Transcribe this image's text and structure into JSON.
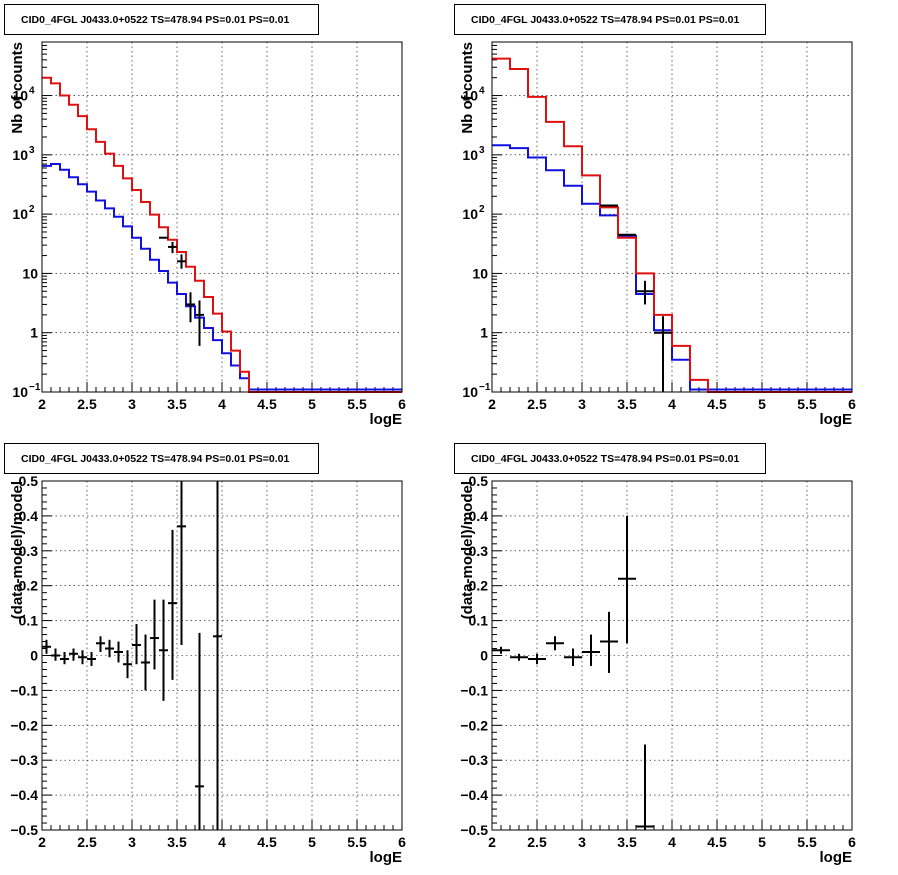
{
  "chart_data": [
    {
      "type": "histogram",
      "title": "CID0_4FGL J0433.0+0522 TS=478.94 PS=0.01 PS=0.01",
      "xlabel": "logE",
      "ylabel": "Nb of counts",
      "xlim": [
        2,
        6
      ],
      "ylim": [
        0.1,
        80000
      ],
      "yscale": "log",
      "grid": true,
      "xticks": [
        "2",
        "2.5",
        "3",
        "3.5",
        "4",
        "4.5",
        "5",
        "5.5",
        "6"
      ],
      "yticks": [
        {
          "v": 0.1,
          "base": "10",
          "exp": "−1"
        },
        {
          "v": 1,
          "label": "1"
        },
        {
          "v": 10,
          "label": "10"
        },
        {
          "v": 100,
          "base": "10",
          "exp": "2"
        },
        {
          "v": 1000,
          "base": "10",
          "exp": "3"
        },
        {
          "v": 10000,
          "base": "10",
          "exp": "4"
        }
      ],
      "bin_edges": [
        2.0,
        2.1,
        2.2,
        2.3,
        2.4,
        2.5,
        2.6,
        2.7,
        2.8,
        2.9,
        3.0,
        3.1,
        3.2,
        3.3,
        3.4,
        3.5,
        3.6,
        3.7,
        3.8,
        3.9,
        4.0,
        4.1,
        4.2,
        4.3,
        4.4,
        4.5,
        4.6,
        4.7,
        4.8,
        4.9,
        5.0,
        5.1,
        5.2,
        5.3,
        5.4,
        5.5,
        5.6,
        5.7,
        5.8,
        5.9,
        6.0
      ],
      "series": [
        {
          "color": "#1010e0",
          "values": [
            650,
            700,
            560,
            420,
            320,
            240,
            170,
            125,
            90,
            62,
            40,
            26,
            17,
            11,
            7,
            4.5,
            2.8,
            1.8,
            1.2,
            0.75,
            0.45,
            0.28,
            0.17,
            0.11,
            0.11,
            0.11,
            0.11,
            0.11,
            0.11,
            0.11,
            0.11,
            0.11,
            0.11,
            0.11,
            0.11,
            0.11,
            0.11,
            0.11,
            0.11,
            0.11
          ]
        },
        {
          "color": "#e01010",
          "values": [
            20000,
            16000,
            10000,
            7000,
            4500,
            2700,
            1650,
            1050,
            650,
            400,
            255,
            160,
            98,
            60,
            37,
            23,
            13,
            7.5,
            4,
            2.1,
            1.05,
            0.5,
            0.22,
            0.1,
            0.1,
            0.1,
            0.1,
            0.1,
            0.1,
            0.1,
            0.1,
            0.1,
            0.1,
            0.1,
            0.1,
            0.1,
            0.1,
            0.1,
            0.1,
            0.1
          ]
        },
        {
          "color": "#000000",
          "points": [
            {
              "x": 3.35,
              "y": 40
            },
            {
              "x": 3.45,
              "y": 28,
              "ylo": 22,
              "yhi": 34
            },
            {
              "x": 3.55,
              "y": 16,
              "ylo": 12,
              "yhi": 21
            },
            {
              "x": 3.65,
              "y": 3,
              "ylo": 1.5,
              "yhi": 4.8
            },
            {
              "x": 3.75,
              "y": 2,
              "ylo": 0.6,
              "yhi": 3.5
            }
          ]
        }
      ]
    },
    {
      "type": "histogram",
      "title": "CID0_4FGL J0433.0+0522 TS=478.94 PS=0.01 PS=0.01",
      "xlabel": "logE",
      "ylabel": "Nb of counts",
      "xlim": [
        2,
        6
      ],
      "ylim": [
        0.1,
        80000
      ],
      "yscale": "log",
      "grid": true,
      "xticks": [
        "2",
        "2.5",
        "3",
        "3.5",
        "4",
        "4.5",
        "5",
        "5.5",
        "6"
      ],
      "yticks": [
        {
          "v": 0.1,
          "base": "10",
          "exp": "−1"
        },
        {
          "v": 1,
          "label": "1"
        },
        {
          "v": 10,
          "label": "10"
        },
        {
          "v": 100,
          "base": "10",
          "exp": "2"
        },
        {
          "v": 1000,
          "base": "10",
          "exp": "3"
        },
        {
          "v": 10000,
          "base": "10",
          "exp": "4"
        }
      ],
      "bin_edges": [
        2.0,
        2.2,
        2.4,
        2.6,
        2.8,
        3.0,
        3.2,
        3.4,
        3.6,
        3.8,
        4.0,
        4.2,
        4.4,
        4.6,
        4.8,
        5.0,
        5.2,
        5.4,
        5.6,
        5.8,
        6.0
      ],
      "series": [
        {
          "color": "#1010e0",
          "values": [
            1450,
            1300,
            900,
            550,
            300,
            150,
            95,
            43,
            4.5,
            1.1,
            0.35,
            0.11,
            0.11,
            0.11,
            0.11,
            0.11,
            0.11,
            0.11,
            0.11,
            0.11
          ]
        },
        {
          "color": "#e01010",
          "values": [
            42000,
            28000,
            9500,
            3600,
            1400,
            450,
            130,
            40,
            10,
            2,
            0.6,
            0.16,
            0.1,
            0.1,
            0.1,
            0.1,
            0.1,
            0.1,
            0.1,
            0.1
          ]
        },
        {
          "color": "#000000",
          "points": [
            {
              "x": 3.3,
              "y": 140
            },
            {
              "x": 3.5,
              "y": 45
            },
            {
              "x": 3.7,
              "y": 5,
              "ylo": 3,
              "yhi": 7.5
            },
            {
              "x": 3.9,
              "y": 1,
              "ylo": 0.1,
              "yhi": 1.9
            }
          ]
        }
      ]
    },
    {
      "type": "scatter",
      "title": "CID0_4FGL J0433.0+0522 TS=478.94 PS=0.01 PS=0.01",
      "xlabel": "logE",
      "ylabel": "(data-model)/model",
      "xlim": [
        2,
        6
      ],
      "ylim": [
        -0.5,
        0.5
      ],
      "grid": true,
      "xticks": [
        "2",
        "2.5",
        "3",
        "3.5",
        "4",
        "4.5",
        "5",
        "5.5",
        "6"
      ],
      "yticks": [
        "−0.5",
        "−0.4",
        "−0.3",
        "−0.2",
        "−0.1",
        "0",
        "0.1",
        "0.2",
        "0.3",
        "0.4",
        "0.5"
      ],
      "series": [
        {
          "color": "#000000",
          "xerr": 0.05,
          "points": [
            {
              "x": 2.05,
              "y": 0.025,
              "ylo": 0.005,
              "yhi": 0.045
            },
            {
              "x": 2.15,
              "y": 0.0,
              "ylo": -0.015,
              "yhi": 0.02
            },
            {
              "x": 2.25,
              "y": -0.01,
              "ylo": -0.025,
              "yhi": 0.01
            },
            {
              "x": 2.35,
              "y": 0.005,
              "ylo": -0.015,
              "yhi": 0.02
            },
            {
              "x": 2.45,
              "y": -0.005,
              "ylo": -0.025,
              "yhi": 0.015
            },
            {
              "x": 2.55,
              "y": -0.01,
              "ylo": -0.03,
              "yhi": 0.01
            },
            {
              "x": 2.65,
              "y": 0.035,
              "ylo": 0.01,
              "yhi": 0.055
            },
            {
              "x": 2.75,
              "y": 0.02,
              "ylo": -0.005,
              "yhi": 0.045
            },
            {
              "x": 2.85,
              "y": 0.01,
              "ylo": -0.02,
              "yhi": 0.04
            },
            {
              "x": 2.95,
              "y": -0.025,
              "ylo": -0.065,
              "yhi": 0.015
            },
            {
              "x": 3.05,
              "y": 0.03,
              "ylo": -0.025,
              "yhi": 0.09
            },
            {
              "x": 3.15,
              "y": -0.02,
              "ylo": -0.1,
              "yhi": 0.06
            },
            {
              "x": 3.25,
              "y": 0.05,
              "ylo": -0.04,
              "yhi": 0.16
            },
            {
              "x": 3.35,
              "y": 0.015,
              "ylo": -0.13,
              "yhi": 0.16
            },
            {
              "x": 3.45,
              "y": 0.15,
              "ylo": -0.07,
              "yhi": 0.36
            },
            {
              "x": 3.55,
              "y": 0.37,
              "ylo": 0.03,
              "yhi": 0.5
            },
            {
              "x": 3.75,
              "y": -0.375,
              "ylo": -0.5,
              "yhi": 0.065
            },
            {
              "x": 3.95,
              "y": 0.055,
              "ylo": -0.5,
              "yhi": 0.5
            }
          ]
        }
      ]
    },
    {
      "type": "scatter",
      "title": "CID0_4FGL J0433.0+0522 TS=478.94 PS=0.01 PS=0.01",
      "xlabel": "logE",
      "ylabel": "(data-model)/model",
      "xlim": [
        2,
        6
      ],
      "ylim": [
        -0.5,
        0.5
      ],
      "grid": true,
      "xticks": [
        "2",
        "2.5",
        "3",
        "3.5",
        "4",
        "4.5",
        "5",
        "5.5",
        "6"
      ],
      "yticks": [
        "−0.5",
        "−0.4",
        "−0.3",
        "−0.2",
        "−0.1",
        "0",
        "0.1",
        "0.2",
        "0.3",
        "0.4",
        "0.5"
      ],
      "series": [
        {
          "color": "#000000",
          "xerr": 0.1,
          "points": [
            {
              "x": 2.1,
              "y": 0.015,
              "ylo": 0.005,
              "yhi": 0.025
            },
            {
              "x": 2.3,
              "y": -0.005,
              "ylo": -0.015,
              "yhi": 0.005
            },
            {
              "x": 2.5,
              "y": -0.01,
              "ylo": -0.025,
              "yhi": 0.005
            },
            {
              "x": 2.7,
              "y": 0.035,
              "ylo": 0.015,
              "yhi": 0.055
            },
            {
              "x": 2.9,
              "y": -0.005,
              "ylo": -0.03,
              "yhi": 0.02
            },
            {
              "x": 3.1,
              "y": 0.01,
              "ylo": -0.03,
              "yhi": 0.06
            },
            {
              "x": 3.3,
              "y": 0.04,
              "ylo": -0.05,
              "yhi": 0.125
            },
            {
              "x": 3.5,
              "y": 0.22,
              "ylo": 0.035,
              "yhi": 0.4
            },
            {
              "x": 3.7,
              "y": -0.49,
              "ylo": -0.5,
              "yhi": -0.255
            }
          ]
        }
      ]
    }
  ]
}
